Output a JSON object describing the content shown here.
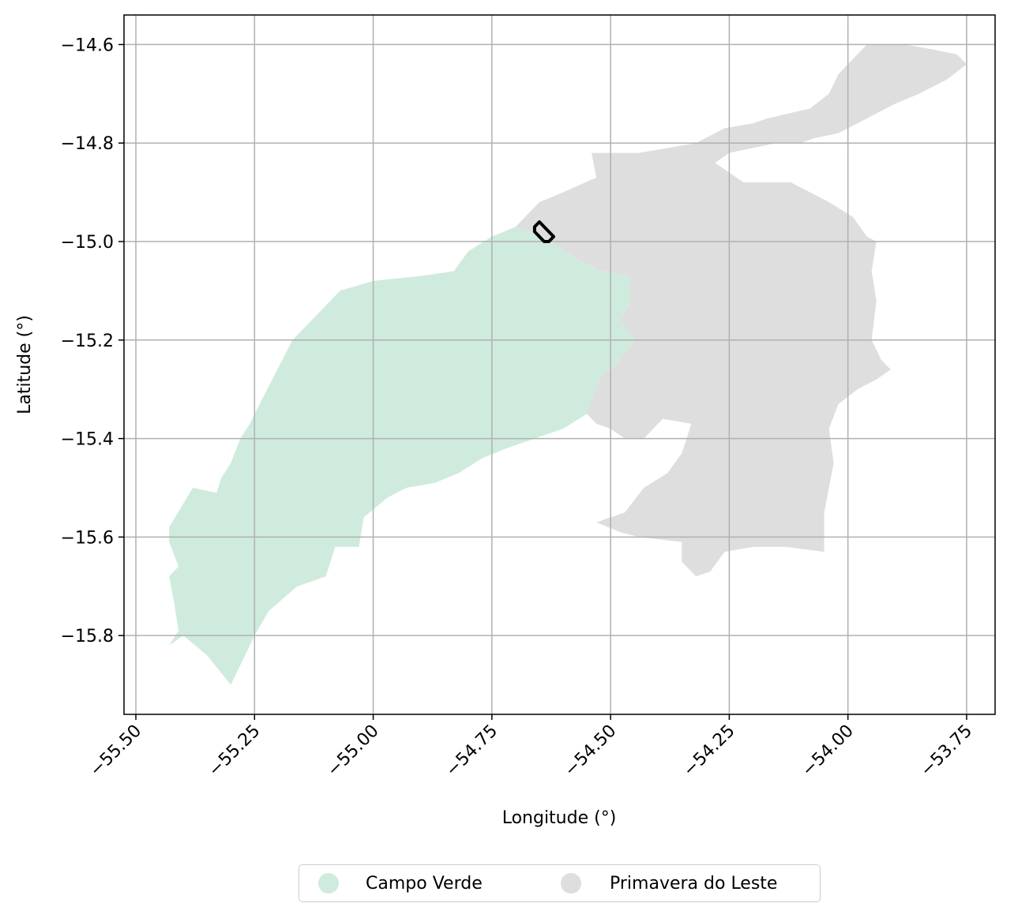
{
  "chart_data": {
    "type": "map",
    "xlabel": "Longitude (°)",
    "ylabel": "Latitude (°)",
    "xlim": [
      -55.525,
      -53.69
    ],
    "ylim": [
      -15.96,
      -14.54
    ],
    "xticks": [
      -55.5,
      -55.25,
      -55.0,
      -54.75,
      -54.5,
      -54.25,
      -54.0,
      -53.75
    ],
    "xtick_labels": [
      "−55.50",
      "−55.25",
      "−55.00",
      "−54.75",
      "−54.50",
      "−54.25",
      "−54.00",
      "−53.75"
    ],
    "yticks": [
      -14.6,
      -14.8,
      -15.0,
      -15.2,
      -15.4,
      -15.6,
      -15.8
    ],
    "ytick_labels": [
      "−14.6",
      "−14.8",
      "−15.0",
      "−15.2",
      "−15.4",
      "−15.6",
      "−15.8"
    ],
    "grid": true,
    "legend_position": "bottom-center-outside",
    "regions": [
      {
        "name": "Campo Verde",
        "color": "#cfebde",
        "polygon": [
          [
            -55.25,
            -15.35
          ],
          [
            -55.17,
            -15.2
          ],
          [
            -55.07,
            -15.1
          ],
          [
            -55.0,
            -15.08
          ],
          [
            -54.9,
            -15.07
          ],
          [
            -54.83,
            -15.06
          ],
          [
            -54.8,
            -15.02
          ],
          [
            -54.75,
            -14.99
          ],
          [
            -54.7,
            -14.97
          ],
          [
            -54.64,
            -14.99
          ],
          [
            -54.58,
            -15.03
          ],
          [
            -54.52,
            -15.06
          ],
          [
            -54.46,
            -15.07
          ],
          [
            -54.46,
            -15.13
          ],
          [
            -54.48,
            -15.16
          ],
          [
            -54.45,
            -15.2
          ],
          [
            -54.48,
            -15.24
          ],
          [
            -54.5,
            -15.26
          ],
          [
            -54.52,
            -15.27
          ],
          [
            -54.55,
            -15.35
          ],
          [
            -54.6,
            -15.38
          ],
          [
            -54.66,
            -15.4
          ],
          [
            -54.72,
            -15.42
          ],
          [
            -54.77,
            -15.44
          ],
          [
            -54.82,
            -15.47
          ],
          [
            -54.87,
            -15.49
          ],
          [
            -54.93,
            -15.5
          ],
          [
            -54.97,
            -15.52
          ],
          [
            -55.02,
            -15.56
          ],
          [
            -55.03,
            -15.62
          ],
          [
            -55.08,
            -15.62
          ],
          [
            -55.1,
            -15.68
          ],
          [
            -55.16,
            -15.7
          ],
          [
            -55.22,
            -15.75
          ],
          [
            -55.25,
            -15.8
          ],
          [
            -55.3,
            -15.9
          ],
          [
            -55.35,
            -15.84
          ],
          [
            -55.4,
            -15.8
          ],
          [
            -55.43,
            -15.82
          ],
          [
            -55.41,
            -15.79
          ],
          [
            -55.42,
            -15.73
          ],
          [
            -55.43,
            -15.68
          ],
          [
            -55.41,
            -15.66
          ],
          [
            -55.43,
            -15.61
          ],
          [
            -55.43,
            -15.58
          ],
          [
            -55.38,
            -15.5
          ],
          [
            -55.33,
            -15.51
          ],
          [
            -55.32,
            -15.48
          ],
          [
            -55.3,
            -15.45
          ],
          [
            -55.28,
            -15.4
          ],
          [
            -55.26,
            -15.37
          ]
        ]
      },
      {
        "name": "Primavera do Leste",
        "color": "#dedede",
        "polygon": [
          [
            -54.54,
            -14.82
          ],
          [
            -54.44,
            -14.82
          ],
          [
            -54.32,
            -14.8
          ],
          [
            -54.26,
            -14.77
          ],
          [
            -54.2,
            -14.76
          ],
          [
            -54.17,
            -14.75
          ],
          [
            -54.08,
            -14.73
          ],
          [
            -54.04,
            -14.7
          ],
          [
            -54.02,
            -14.66
          ],
          [
            -53.96,
            -14.6
          ],
          [
            -53.92,
            -14.6
          ],
          [
            -53.88,
            -14.6
          ],
          [
            -53.82,
            -14.61
          ],
          [
            -53.77,
            -14.62
          ],
          [
            -53.75,
            -14.64
          ],
          [
            -53.79,
            -14.67
          ],
          [
            -53.85,
            -14.7
          ],
          [
            -53.9,
            -14.72
          ],
          [
            -53.96,
            -14.75
          ],
          [
            -54.02,
            -14.78
          ],
          [
            -54.07,
            -14.79
          ],
          [
            -54.1,
            -14.8
          ],
          [
            -54.15,
            -14.8
          ],
          [
            -54.25,
            -14.82
          ],
          [
            -54.28,
            -14.84
          ],
          [
            -54.22,
            -14.88
          ],
          [
            -54.12,
            -14.88
          ],
          [
            -54.04,
            -14.92
          ],
          [
            -53.99,
            -14.95
          ],
          [
            -53.96,
            -14.99
          ],
          [
            -53.94,
            -15.0
          ],
          [
            -53.95,
            -15.06
          ],
          [
            -53.94,
            -15.12
          ],
          [
            -53.95,
            -15.2
          ],
          [
            -53.93,
            -15.24
          ],
          [
            -53.91,
            -15.26
          ],
          [
            -53.94,
            -15.28
          ],
          [
            -53.98,
            -15.3
          ],
          [
            -54.02,
            -15.33
          ],
          [
            -54.04,
            -15.38
          ],
          [
            -54.03,
            -15.45
          ],
          [
            -54.05,
            -15.55
          ],
          [
            -54.05,
            -15.6
          ],
          [
            -54.05,
            -15.63
          ],
          [
            -54.13,
            -15.62
          ],
          [
            -54.2,
            -15.62
          ],
          [
            -54.26,
            -15.63
          ],
          [
            -54.29,
            -15.67
          ],
          [
            -54.32,
            -15.68
          ],
          [
            -54.35,
            -15.65
          ],
          [
            -54.35,
            -15.61
          ],
          [
            -54.44,
            -15.6
          ],
          [
            -54.48,
            -15.59
          ],
          [
            -54.53,
            -15.57
          ],
          [
            -54.47,
            -15.55
          ],
          [
            -54.43,
            -15.5
          ],
          [
            -54.38,
            -15.47
          ],
          [
            -54.35,
            -15.43
          ],
          [
            -54.33,
            -15.37
          ],
          [
            -54.39,
            -15.36
          ],
          [
            -54.43,
            -15.4
          ],
          [
            -54.47,
            -15.4
          ],
          [
            -54.5,
            -15.38
          ],
          [
            -54.53,
            -15.37
          ],
          [
            -54.55,
            -15.35
          ],
          [
            -54.52,
            -15.27
          ],
          [
            -54.5,
            -15.26
          ],
          [
            -54.48,
            -15.24
          ],
          [
            -54.45,
            -15.2
          ],
          [
            -54.48,
            -15.16
          ],
          [
            -54.46,
            -15.13
          ],
          [
            -54.46,
            -15.07
          ],
          [
            -54.52,
            -15.06
          ],
          [
            -54.58,
            -15.03
          ],
          [
            -54.64,
            -14.99
          ],
          [
            -54.7,
            -14.97
          ],
          [
            -54.65,
            -14.92
          ],
          [
            -54.6,
            -14.9
          ],
          [
            -54.53,
            -14.87
          ]
        ]
      }
    ],
    "outline": {
      "name": "study-area",
      "color": "#000000",
      "polygon": [
        [
          -54.66,
          -14.97
        ],
        [
          -54.65,
          -14.96
        ],
        [
          -54.62,
          -14.99
        ],
        [
          -54.63,
          -15.0
        ],
        [
          -54.64,
          -15.0
        ],
        [
          -54.66,
          -14.98
        ]
      ]
    },
    "legend": [
      {
        "label": "Campo Verde",
        "color": "#cfebde"
      },
      {
        "label": "Primavera do Leste",
        "color": "#dedede"
      }
    ]
  }
}
